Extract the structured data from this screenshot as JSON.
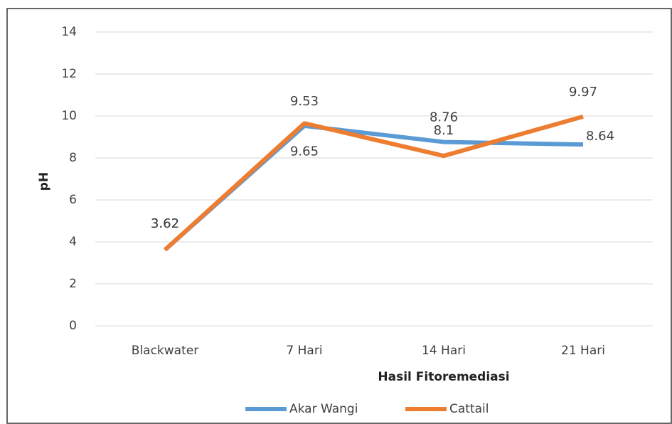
{
  "chart_data": {
    "type": "line",
    "xlabel": "Hasil Fitoremediasi",
    "ylabel": "pH",
    "categories": [
      "Blackwater",
      "7 Hari",
      "14 Hari",
      "21 Hari"
    ],
    "series": [
      {
        "name": "Akar Wangi",
        "color": "#5b9bd5",
        "values": [
          3.62,
          9.53,
          8.76,
          8.64
        ]
      },
      {
        "name": "Cattail",
        "color": "#ed7d31",
        "values": [
          3.62,
          9.65,
          8.1,
          9.97
        ]
      }
    ],
    "ylim": [
      0,
      14
    ],
    "yticks": [
      0,
      2,
      4,
      6,
      8,
      10,
      12,
      14
    ],
    "grid": true,
    "legend": "bottom"
  }
}
